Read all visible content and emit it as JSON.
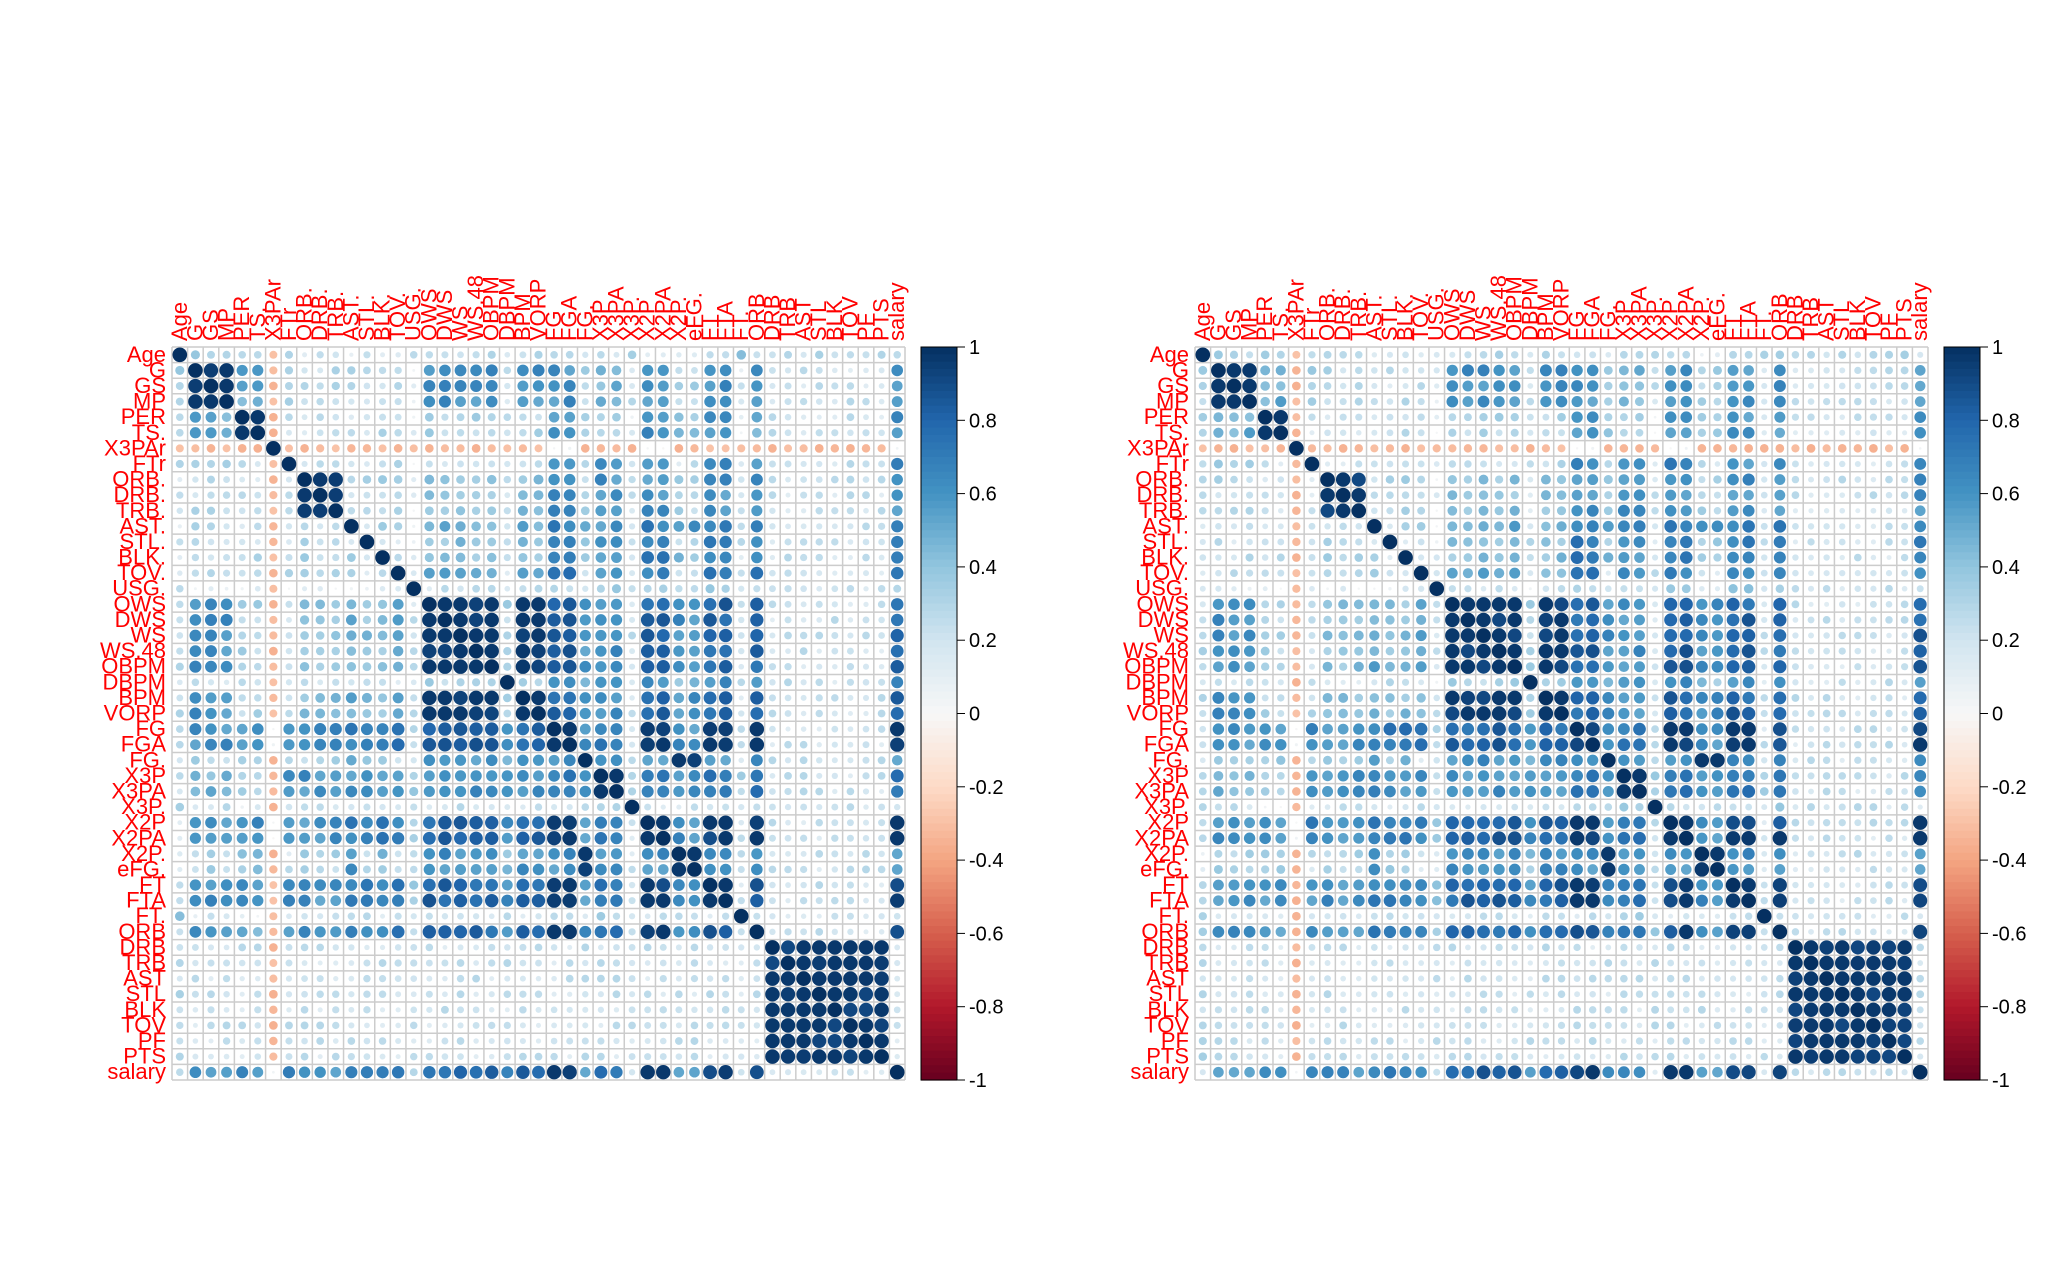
{
  "chart_data": [
    {
      "type": "heatmap",
      "variables": [
        "Age",
        "G",
        "GS",
        "MP",
        "PER",
        "TS.",
        "X3PAr",
        "FTr",
        "ORB.",
        "DRB.",
        "TRB.",
        "AST.",
        "STL.",
        "BLK.",
        "TOV.",
        "USG.",
        "OWS",
        "DWS",
        "WS",
        "WS.48",
        "OBPM",
        "DBPM",
        "BPM",
        "VORP",
        "FG",
        "FGA",
        "FG.",
        "X3P",
        "X3PA",
        "X3P.",
        "X2P",
        "X2PA",
        "X2P.",
        "eFG.",
        "FT",
        "FTA",
        "FT.",
        "ORB",
        "DRB",
        "TRB",
        "AST",
        "STL",
        "BLK",
        "TOV",
        "PF",
        "PTS",
        "salary"
      ],
      "groups": [
        [
          0
        ],
        [
          1,
          2,
          3
        ],
        [
          4,
          5
        ],
        [
          6
        ],
        [
          7
        ],
        [
          8,
          9,
          10
        ],
        [
          11
        ],
        [
          12
        ],
        [
          13
        ],
        [
          14
        ],
        [
          15
        ],
        [
          16,
          17,
          18,
          19,
          20,
          22,
          23
        ],
        [
          21
        ],
        [
          24,
          25,
          30,
          31,
          46
        ],
        [
          26,
          32,
          33
        ],
        [
          27,
          28
        ],
        [
          29
        ],
        [
          34,
          35
        ],
        [
          36
        ],
        [
          37
        ],
        [
          38,
          39,
          40,
          41,
          42,
          43,
          44,
          45
        ]
      ],
      "strength": [
        [
          1,
          0.3,
          0.28,
          0.35,
          0.3,
          0.2,
          0.1,
          0.2,
          0.2,
          0.2,
          0.2,
          0.25,
          0.2,
          0.2,
          0.1,
          0.2,
          0.3,
          0.3,
          0.35,
          0.3,
          0.25,
          0.15,
          0.3,
          0.3,
          0.25
        ],
        [
          0.3,
          1,
          0.5,
          0.2,
          0.3,
          0.25,
          0.25,
          0.2,
          0.25,
          0.25,
          0.1,
          0.6,
          0.2,
          0.6,
          0.3,
          0.45,
          0.2,
          0.6,
          0.15,
          0.6,
          0.2,
          0.2,
          0.2,
          0.2,
          0.2
        ],
        [
          0.28,
          0.5,
          1,
          0.2,
          0.2,
          0.2,
          0.2,
          0.2,
          0.25,
          0.2,
          0.1,
          0.3,
          0.2,
          0.6,
          0.4,
          0.3,
          0.1,
          0.6,
          0.1,
          0.5,
          0.2,
          0.2,
          0.2,
          0.2,
          0.2
        ],
        [
          0.35,
          0.2,
          0.2,
          1,
          0.2,
          0.3,
          0.2,
          0.2,
          0.3,
          0.25,
          0.1,
          0.25,
          0.15,
          0.55,
          0.2,
          0.2,
          0.15,
          0.45,
          0.15,
          0.45,
          0.2,
          0.2,
          0.2,
          0.2,
          0.2
        ],
        [
          0.3,
          0.3,
          0.2,
          0.2,
          1,
          0.2,
          0.2,
          0.2,
          0.2,
          0.25,
          0.1,
          0.25,
          0.2,
          0.65,
          0.2,
          0.6,
          0.2,
          0.6,
          0.2,
          0.6,
          0.2,
          0.2,
          0.2,
          0.2,
          0.2
        ],
        [
          0.2,
          0.25,
          0.2,
          0.3,
          0.2,
          1,
          0.2,
          0.3,
          0.3,
          0.3,
          0.1,
          0.4,
          0.2,
          0.6,
          0.3,
          0.6,
          0.2,
          0.6,
          0.2,
          0.6,
          0.2,
          0.2,
          0.2,
          0.2,
          0.2
        ],
        [
          0.1,
          0.25,
          0.2,
          0.2,
          0.2,
          0.2,
          1,
          0.2,
          0.3,
          0.3,
          0.1,
          0.5,
          0.2,
          0.7,
          0.6,
          0.6,
          0.2,
          0.7,
          0.2,
          0.7,
          0.2,
          0.2,
          0.2,
          0.2,
          0.2
        ],
        [
          0.2,
          0.2,
          0.2,
          0.2,
          0.2,
          0.3,
          0.2,
          1,
          0.2,
          0.2,
          0.1,
          0.4,
          0.3,
          0.7,
          0.3,
          0.6,
          0.2,
          0.7,
          0.2,
          0.7,
          0.2,
          0.2,
          0.2,
          0.2,
          0.2
        ],
        [
          0.2,
          0.25,
          0.25,
          0.3,
          0.2,
          0.3,
          0.3,
          0.2,
          1,
          0.2,
          0.1,
          0.4,
          0.3,
          0.7,
          0.4,
          0.6,
          0.2,
          0.7,
          0.2,
          0.7,
          0.2,
          0.2,
          0.2,
          0.2,
          0.2
        ],
        [
          0.2,
          0.25,
          0.2,
          0.25,
          0.25,
          0.3,
          0.3,
          0.2,
          0.2,
          1,
          0.1,
          0.5,
          0.2,
          0.7,
          0.2,
          0.6,
          0.2,
          0.7,
          0.2,
          0.7,
          0.2,
          0.2,
          0.2,
          0.2,
          0.2
        ],
        [
          0.2,
          0.1,
          0.1,
          0.1,
          0.1,
          0.1,
          0.1,
          0.1,
          0.1,
          0.1,
          1,
          0.2,
          0.1,
          0.3,
          0.2,
          0.3,
          0.2,
          0.4,
          0.2,
          0.3,
          0.2,
          0.2,
          0.2,
          0.2,
          0.2
        ],
        [
          0.25,
          0.6,
          0.3,
          0.25,
          0.25,
          0.4,
          0.5,
          0.4,
          0.4,
          0.5,
          0.2,
          1,
          0.3,
          0.8,
          0.6,
          0.6,
          0.2,
          0.8,
          0.2,
          0.8,
          0.2,
          0.2,
          0.2,
          0.2,
          0.2
        ],
        [
          0.2,
          0.2,
          0.2,
          0.15,
          0.2,
          0.2,
          0.2,
          0.3,
          0.3,
          0.2,
          0.1,
          0.3,
          1,
          0.6,
          0.4,
          0.6,
          0.2,
          0.6,
          0.2,
          0.6,
          0.2,
          0.2,
          0.2,
          0.2,
          0.2
        ],
        [
          0.2,
          0.6,
          0.6,
          0.55,
          0.65,
          0.6,
          0.7,
          0.7,
          0.7,
          0.7,
          0.3,
          0.8,
          0.6,
          1,
          0.6,
          0.7,
          0.2,
          0.95,
          0.2,
          0.9,
          0.2,
          0.2,
          0.2,
          0.2,
          0.2
        ],
        [
          0.1,
          0.3,
          0.4,
          0.2,
          0.2,
          0.3,
          0.6,
          0.3,
          0.4,
          0.2,
          0.2,
          0.6,
          0.4,
          0.6,
          1,
          0.6,
          0.2,
          0.6,
          0.2,
          0.6,
          0.2,
          0.2,
          0.2,
          0.2,
          0.2
        ],
        [
          0.2,
          0.45,
          0.3,
          0.2,
          0.6,
          0.6,
          0.6,
          0.6,
          0.6,
          0.6,
          0.3,
          0.6,
          0.6,
          0.7,
          0.6,
          1,
          0.3,
          0.75,
          0.3,
          0.75,
          0.2,
          0.2,
          0.2,
          0.2,
          0.2
        ],
        [
          0.3,
          0.2,
          0.1,
          0.15,
          0.2,
          0.2,
          0.2,
          0.2,
          0.2,
          0.2,
          0.2,
          0.2,
          0.2,
          0.2,
          0.2,
          0.3,
          1,
          0.2,
          0.2,
          0.3,
          0.2,
          0.2,
          0.2,
          0.2,
          0.2
        ],
        [
          0.3,
          0.6,
          0.6,
          0.45,
          0.6,
          0.6,
          0.7,
          0.7,
          0.7,
          0.7,
          0.4,
          0.8,
          0.6,
          0.95,
          0.6,
          0.75,
          0.2,
          1,
          0.2,
          0.9,
          0.2,
          0.2,
          0.2,
          0.2,
          0.2
        ],
        [
          0.35,
          0.15,
          0.1,
          0.15,
          0.2,
          0.2,
          0.2,
          0.2,
          0.2,
          0.2,
          0.2,
          0.2,
          0.2,
          0.2,
          0.2,
          0.3,
          0.2,
          0.2,
          1,
          0.2,
          0.2,
          0.2,
          0.2,
          0.2,
          0.2
        ],
        [
          0.3,
          0.6,
          0.5,
          0.45,
          0.6,
          0.6,
          0.7,
          0.7,
          0.7,
          0.7,
          0.3,
          0.8,
          0.6,
          0.9,
          0.6,
          0.75,
          0.3,
          0.9,
          0.2,
          1,
          0.2,
          0.2,
          0.2,
          0.2,
          0.2
        ],
        [
          0.25,
          0.2,
          0.2,
          0.2,
          0.2,
          0.2,
          0.2,
          0.2,
          0.2,
          0.2,
          0.2,
          0.2,
          0.2,
          0.2,
          0.2,
          0.2,
          0.2,
          0.2,
          0.2,
          0.2,
          1,
          0.2,
          0.2,
          0.2,
          0.2
        ],
        [
          0.15,
          0.2,
          0.2,
          0.2,
          0.2,
          0.2,
          0.2,
          0.2,
          0.2,
          0.2,
          0.2,
          0.2,
          0.2,
          0.2,
          0.2,
          0.2,
          0.2,
          0.2,
          0.2,
          0.2,
          0.2,
          1,
          0.2,
          0.2,
          0.2
        ],
        [
          0.3,
          0.2,
          0.2,
          0.2,
          0.2,
          0.2,
          0.2,
          0.2,
          0.2,
          0.2,
          0.2,
          0.2,
          0.2,
          0.2,
          0.2,
          0.2,
          0.2,
          0.2,
          0.2,
          0.2,
          0.2,
          0.2,
          1,
          0.2,
          0.2
        ],
        [
          0.3,
          0.2,
          0.2,
          0.2,
          0.2,
          0.2,
          0.2,
          0.2,
          0.2,
          0.2,
          0.2,
          0.2,
          0.2,
          0.2,
          0.2,
          0.2,
          0.2,
          0.2,
          0.2,
          0.2,
          0.2,
          0.2,
          0.2,
          1,
          0.2
        ],
        [
          0.25,
          0.2,
          0.2,
          0.2,
          0.2,
          0.2,
          0.2,
          0.2,
          0.2,
          0.2,
          0.2,
          0.2,
          0.2,
          0.2,
          0.2,
          0.2,
          0.2,
          0.2,
          0.2,
          0.2,
          0.2,
          0.2,
          0.2,
          0.2,
          1
        ]
      ],
      "legend": {
        "ticks": [
          "1",
          "0.8",
          "0.6",
          "0.4",
          "0.2",
          "0",
          "-0.2",
          "-0.4",
          "-0.6",
          "-0.8",
          "-1"
        ],
        "range": [
          -1,
          1
        ],
        "placement": "right"
      },
      "ylim": [
        -1,
        1
      ]
    },
    {
      "type": "heatmap",
      "variables": [
        "Age",
        "G",
        "GS",
        "MP",
        "PER",
        "TS.",
        "X3PAr",
        "FTr",
        "ORB.",
        "DRB.",
        "TRB.",
        "AST.",
        "STL.",
        "BLK.",
        "TOV.",
        "USG.",
        "OWS",
        "DWS",
        "WS",
        "WS.48",
        "OBPM",
        "DBPM",
        "BPM",
        "VORP",
        "FG",
        "FGA",
        "FG.",
        "X3P",
        "X3PA",
        "X3P.",
        "X2P",
        "X2PA",
        "X2P.",
        "eFG.",
        "FT",
        "FTA",
        "FT.",
        "ORB",
        "DRB",
        "TRB",
        "AST",
        "STL",
        "BLK",
        "TOV",
        "PF",
        "PTS",
        "salary"
      ],
      "legend": {
        "ticks": [
          "1",
          "0.8",
          "0.6",
          "0.4",
          "0.2",
          "0",
          "-0.2",
          "-0.4",
          "-0.6",
          "-0.8",
          "-1"
        ],
        "range": [
          -1,
          1
        ],
        "placement": "right"
      },
      "ylim": [
        -1,
        1
      ]
    }
  ],
  "colors": {
    "label": "#ff0000",
    "grid": "#cccccc",
    "neg": "#67001f",
    "pos": "#053061"
  }
}
